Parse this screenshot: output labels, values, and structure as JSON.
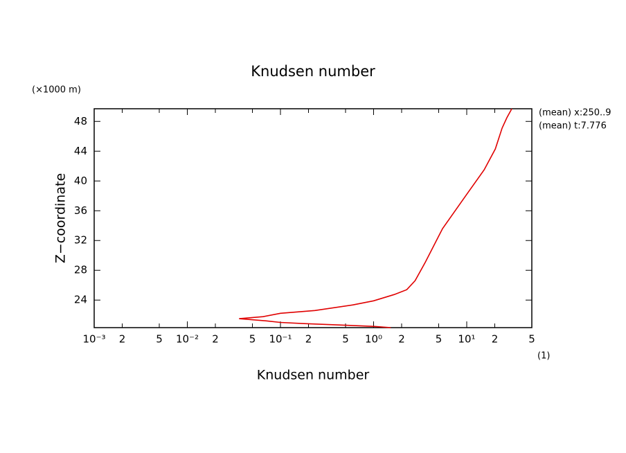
{
  "chart_data": {
    "type": "line",
    "title": "Knudsen number",
    "x_label": "Knudsen number",
    "y_label": "Z−coordinate",
    "y_unit": "(×1000 m)",
    "x_unit": "(1)",
    "annotations": [
      "(mean) x:250..9",
      "(mean) t:7.776"
    ],
    "xscale": "log",
    "color": "#e00000",
    "x": [
      1.53,
      1.0,
      0.43,
      0.18,
      0.1,
      0.071,
      0.036,
      0.065,
      0.1,
      0.234,
      0.6,
      1.0,
      1.67,
      2.27,
      2.79,
      3.6,
      5.5,
      10.0,
      15.4,
      20.3,
      24,
      27,
      30.5
    ],
    "values": [
      20.3,
      20.47,
      20.65,
      20.84,
      21.0,
      21.2,
      21.5,
      21.77,
      22.23,
      22.6,
      23.35,
      23.9,
      24.75,
      25.4,
      26.6,
      29.1,
      33.6,
      38.2,
      41.5,
      44.3,
      47.1,
      48.5,
      49.7
    ],
    "xlim": [
      0.001,
      50
    ],
    "ylim": [
      20.3,
      49.7
    ],
    "xticks": [
      {
        "value": 0.001,
        "label": "10⁻³"
      },
      {
        "value": 0.002,
        "label": "2"
      },
      {
        "value": 0.005,
        "label": "5"
      },
      {
        "value": 0.01,
        "label": "10⁻²"
      },
      {
        "value": 0.02,
        "label": "2"
      },
      {
        "value": 0.05,
        "label": "5"
      },
      {
        "value": 0.1,
        "label": "10⁻¹"
      },
      {
        "value": 0.2,
        "label": "2"
      },
      {
        "value": 0.5,
        "label": "5"
      },
      {
        "value": 1,
        "label": "10⁰"
      },
      {
        "value": 2,
        "label": "2"
      },
      {
        "value": 5,
        "label": "5"
      },
      {
        "value": 10,
        "label": "10¹"
      },
      {
        "value": 20,
        "label": "2"
      },
      {
        "value": 50,
        "label": "5"
      }
    ],
    "yticks": [
      24,
      28,
      32,
      36,
      40,
      44,
      48
    ]
  }
}
